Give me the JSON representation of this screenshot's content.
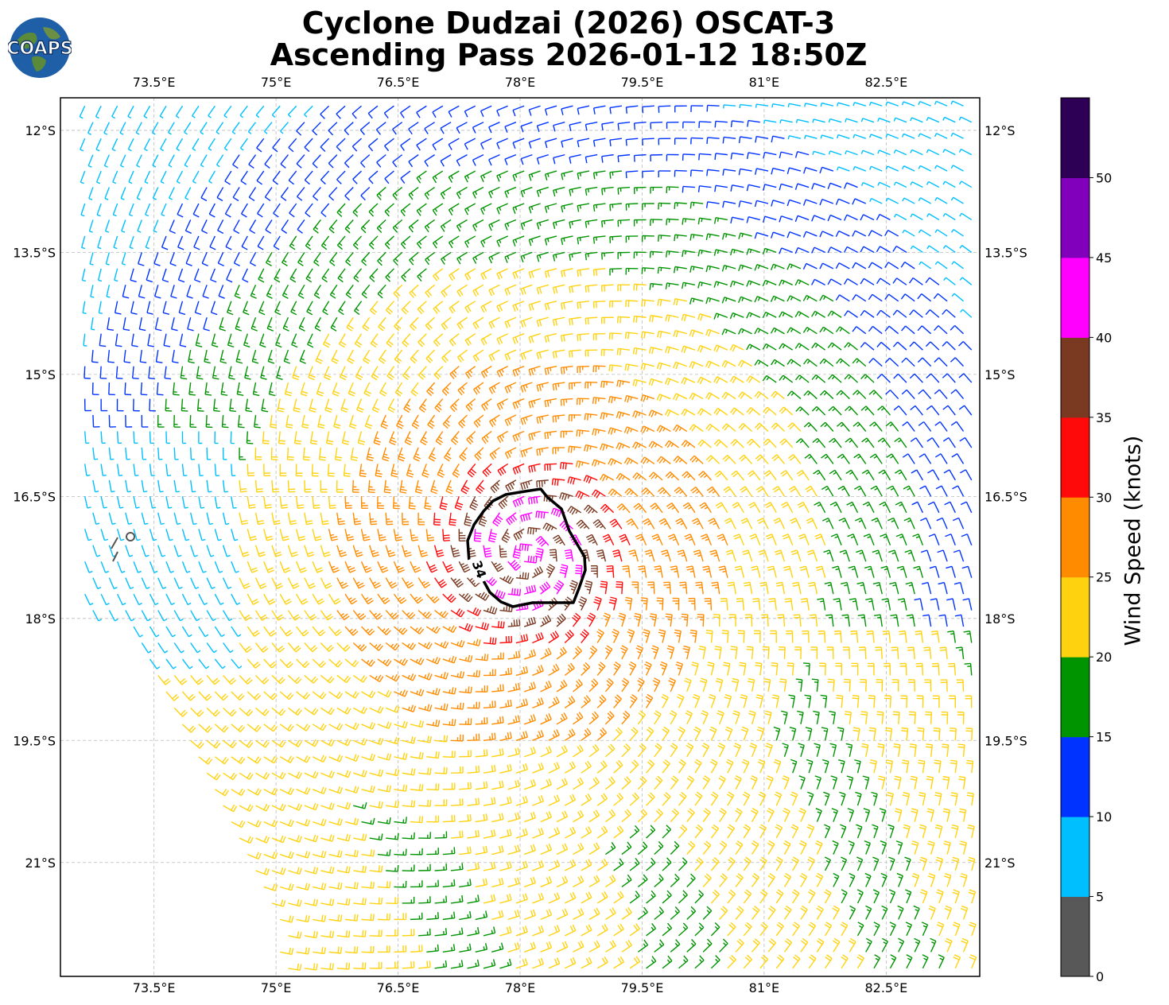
{
  "header": {
    "title_line1": "Cyclone Dudzai (2026) OSCAT-3",
    "title_line2": "Ascending Pass 2026-01-12 18:50Z",
    "logo_text": "COAPS"
  },
  "map": {
    "lon_range": [
      72.35,
      83.65
    ],
    "lat_range": [
      -22.4,
      -11.6
    ],
    "lon_ticks": [
      "73.5°E",
      "75°E",
      "76.5°E",
      "78°E",
      "79.5°E",
      "81°E",
      "82.5°E"
    ],
    "lat_ticks": [
      "12°S",
      "13.5°S",
      "15°S",
      "16.5°S",
      "18°S",
      "19.5°S",
      "21°S"
    ],
    "gridlines": "dashed",
    "storm_center": {
      "lon": 78.1,
      "lat": -17.2
    },
    "contour_label": "34",
    "barb_style": "wind barbs colored by speed"
  },
  "colorbar": {
    "label": "Wind Speed (knots)",
    "ticks": [
      "0",
      "5",
      "10",
      "15",
      "20",
      "25",
      "30",
      "35",
      "40",
      "45",
      "50"
    ],
    "bins": [
      {
        "min": 0,
        "max": 5,
        "color": "#585858"
      },
      {
        "min": 5,
        "max": 10,
        "color": "#00bfff"
      },
      {
        "min": 10,
        "max": 15,
        "color": "#0033ff"
      },
      {
        "min": 15,
        "max": 20,
        "color": "#009400"
      },
      {
        "min": 20,
        "max": 25,
        "color": "#ffd20f"
      },
      {
        "min": 25,
        "max": 30,
        "color": "#ff8c00"
      },
      {
        "min": 30,
        "max": 35,
        "color": "#ff0a0a"
      },
      {
        "min": 35,
        "max": 40,
        "color": "#7a3a22"
      },
      {
        "min": 40,
        "max": 45,
        "color": "#ff00ff"
      },
      {
        "min": 45,
        "max": 50,
        "color": "#8000bb"
      },
      {
        "min": 50,
        "max": 55,
        "color": "#2d0055"
      }
    ]
  }
}
